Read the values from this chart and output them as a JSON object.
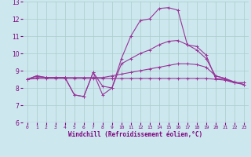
{
  "xlabel": "Windchill (Refroidissement éolien,°C)",
  "background_color": "#cce8ee",
  "grid_color": "#aacccc",
  "line_color": "#993399",
  "xlim": [
    -0.5,
    23.5
  ],
  "ylim": [
    6,
    13
  ],
  "xticks": [
    0,
    1,
    2,
    3,
    4,
    5,
    6,
    7,
    8,
    9,
    10,
    11,
    12,
    13,
    14,
    15,
    16,
    17,
    18,
    19,
    20,
    21,
    22,
    23
  ],
  "yticks": [
    6,
    7,
    8,
    9,
    10,
    11,
    12,
    13
  ],
  "series": [
    [
      8.5,
      8.7,
      8.6,
      8.6,
      8.6,
      7.6,
      7.5,
      8.9,
      7.6,
      8.0,
      9.7,
      11.0,
      11.9,
      12.0,
      12.6,
      12.65,
      12.5,
      10.5,
      10.4,
      9.9,
      8.55,
      8.5,
      8.3,
      8.3
    ],
    [
      8.5,
      8.6,
      8.6,
      8.6,
      8.6,
      8.6,
      8.6,
      8.6,
      8.6,
      8.7,
      8.8,
      8.9,
      9.0,
      9.1,
      9.2,
      9.3,
      9.4,
      9.4,
      9.35,
      9.2,
      8.7,
      8.55,
      8.35,
      8.2
    ],
    [
      8.5,
      8.55,
      8.55,
      8.55,
      8.55,
      8.55,
      8.55,
      8.55,
      8.55,
      8.55,
      8.55,
      8.55,
      8.55,
      8.55,
      8.55,
      8.55,
      8.55,
      8.55,
      8.55,
      8.55,
      8.5,
      8.45,
      8.3,
      8.2
    ],
    [
      8.5,
      8.7,
      8.6,
      8.6,
      8.6,
      7.6,
      7.5,
      8.9,
      8.1,
      8.0,
      9.4,
      9.7,
      10.0,
      10.2,
      10.5,
      10.7,
      10.75,
      10.5,
      10.2,
      9.7,
      8.7,
      8.55,
      8.3,
      8.3
    ]
  ]
}
